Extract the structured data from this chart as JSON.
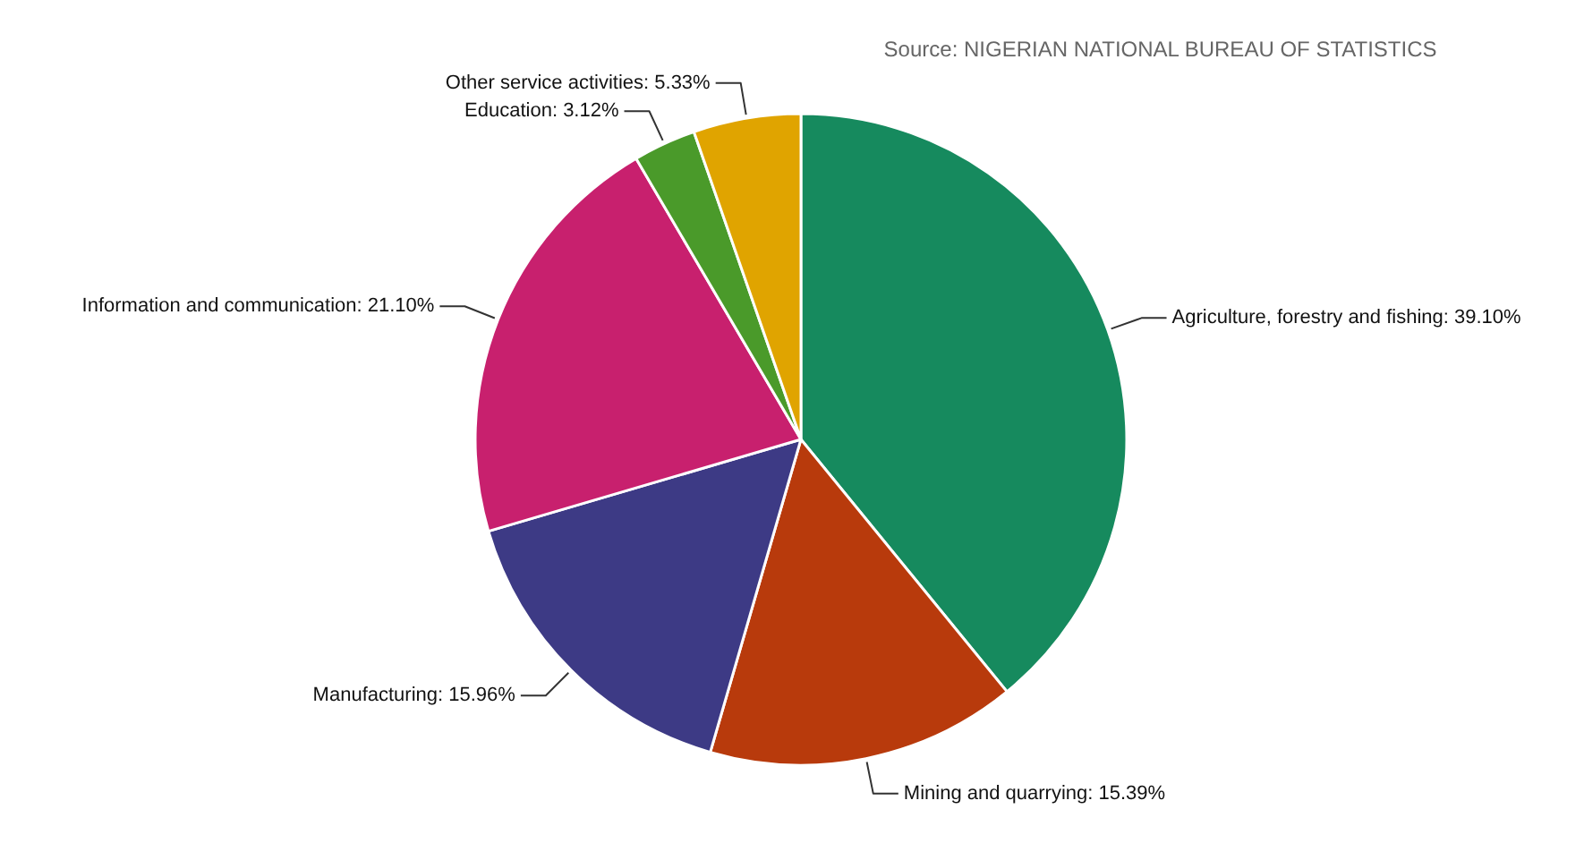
{
  "chart_data": {
    "type": "pie",
    "categories": [
      "Agriculture, forestry and fishing",
      "Mining and quarrying",
      "Manufacturing",
      "Information and communication",
      "Education",
      "Other service activities"
    ],
    "values": [
      39.1,
      15.39,
      15.96,
      21.1,
      3.12,
      5.33
    ],
    "value_labels": [
      "39.10%",
      "15.39%",
      "15.96%",
      "21.10%",
      "3.12%",
      "5.33%"
    ],
    "colors": [
      "#168a5e",
      "#b83a0c",
      "#3d3a85",
      "#c8206e",
      "#4a9a2a",
      "#e0a400"
    ],
    "annotations": [
      "Source: NIGERIAN NATIONAL BUREAU OF STATISTICS"
    ]
  }
}
